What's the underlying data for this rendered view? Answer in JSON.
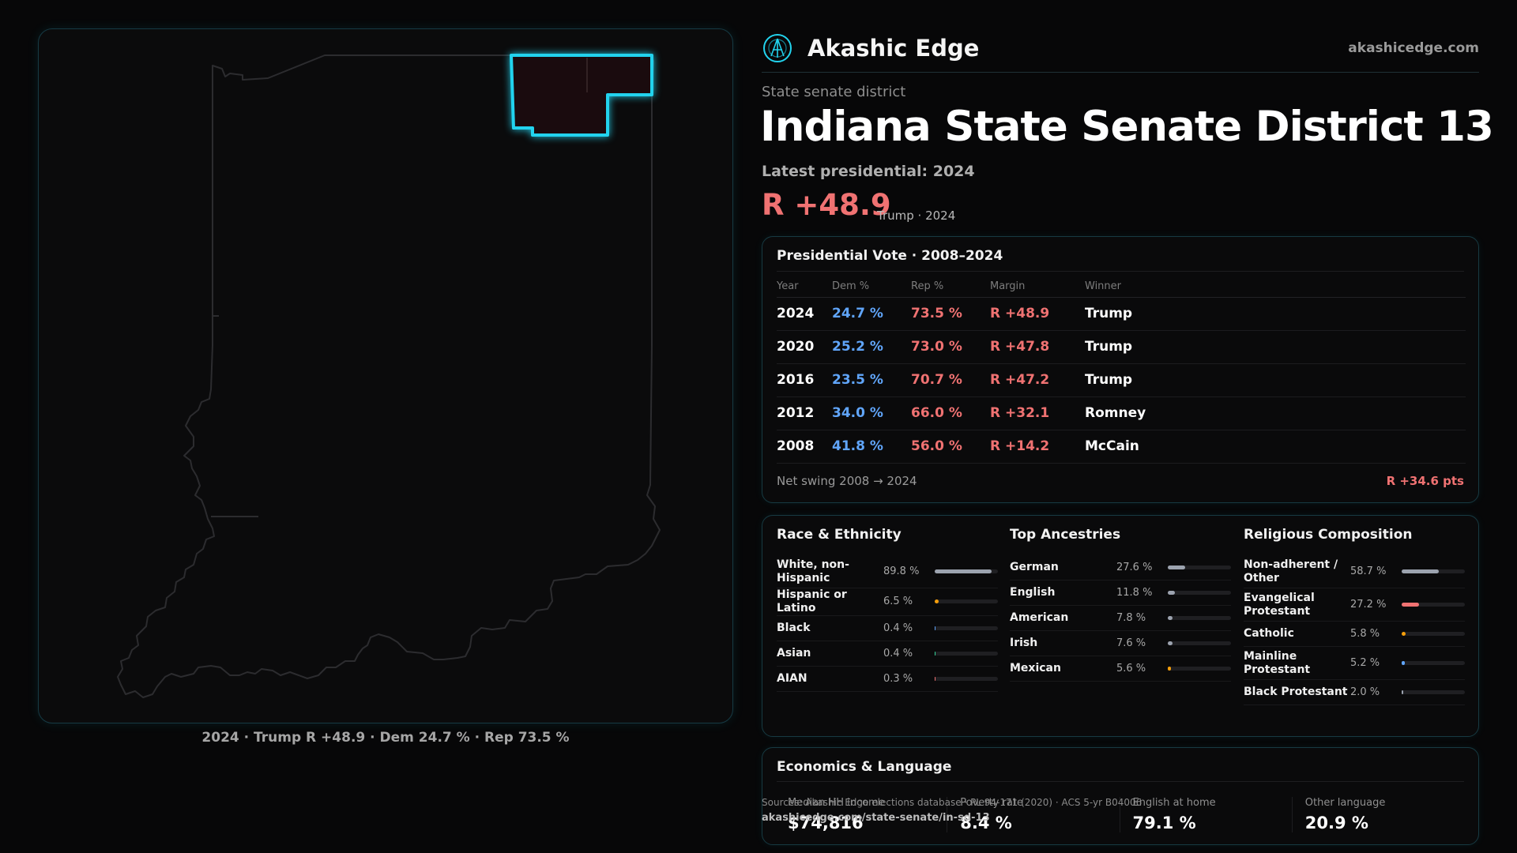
{
  "brand": {
    "name": "Akashic Edge",
    "url": "akashicedge.com",
    "accent": "#22d3ee"
  },
  "colors": {
    "dem": "#60a5fa",
    "rep": "#f07272",
    "background": "#070708"
  },
  "district": {
    "kicker": "State senate district",
    "title": "Indiana State Senate District 13",
    "latest_label": "Latest presidential: 2024",
    "headline_margin": "R +48.9",
    "headline_sub": "Trump · 2024"
  },
  "map": {
    "caption": "2024 · Trump R +48.9 · Dem 24.7 % · Rep 73.5 %"
  },
  "presidential": {
    "title": "Presidential Vote · 2008–2024",
    "columns": [
      "Year",
      "Dem %",
      "Rep %",
      "Margin",
      "Winner"
    ],
    "rows": [
      {
        "year": "2024",
        "dem": "24.7 %",
        "rep": "73.5 %",
        "margin": "R +48.9",
        "winner": "Trump"
      },
      {
        "year": "2020",
        "dem": "25.2 %",
        "rep": "73.0 %",
        "margin": "R +47.8",
        "winner": "Trump"
      },
      {
        "year": "2016",
        "dem": "23.5 %",
        "rep": "70.7 %",
        "margin": "R +47.2",
        "winner": "Trump"
      },
      {
        "year": "2012",
        "dem": "34.0 %",
        "rep": "66.0 %",
        "margin": "R +32.1",
        "winner": "Romney"
      },
      {
        "year": "2008",
        "dem": "41.8 %",
        "rep": "56.0 %",
        "margin": "R +14.2",
        "winner": "McCain"
      }
    ],
    "net_swing_label": "Net swing 2008 → 2024",
    "net_swing_value": "R +34.6 pts"
  },
  "race": {
    "title": "Race & Ethnicity",
    "items": [
      {
        "label": "White, non-Hispanic",
        "value": "89.8 %",
        "share": 0.898,
        "color": "#9ca3af"
      },
      {
        "label": "Hispanic or Latino",
        "value": "6.5 %",
        "share": 0.065,
        "color": "#f59e0b"
      },
      {
        "label": "Black",
        "value": "0.4 %",
        "share": 0.004,
        "color": "#60a5fa"
      },
      {
        "label": "Asian",
        "value": "0.4 %",
        "share": 0.004,
        "color": "#34d399"
      },
      {
        "label": "AIAN",
        "value": "0.3 %",
        "share": 0.003,
        "color": "#f07272"
      }
    ]
  },
  "ancestry": {
    "title": "Top Ancestries",
    "items": [
      {
        "label": "German",
        "value": "27.6 %",
        "share": 0.276,
        "color": "#9ca3af"
      },
      {
        "label": "English",
        "value": "11.8 %",
        "share": 0.118,
        "color": "#9ca3af"
      },
      {
        "label": "American",
        "value": "7.8 %",
        "share": 0.078,
        "color": "#9ca3af"
      },
      {
        "label": "Irish",
        "value": "7.6 %",
        "share": 0.076,
        "color": "#9ca3af"
      },
      {
        "label": "Mexican",
        "value": "5.6 %",
        "share": 0.056,
        "color": "#f59e0b"
      }
    ]
  },
  "religion": {
    "title": "Religious Composition",
    "items": [
      {
        "label": "Non-adherent / Other",
        "value": "58.7 %",
        "share": 0.587,
        "color": "#9ca3af"
      },
      {
        "label": "Evangelical Protestant",
        "value": "27.2 %",
        "share": 0.272,
        "color": "#f07272"
      },
      {
        "label": "Catholic",
        "value": "5.8 %",
        "share": 0.058,
        "color": "#f59e0b"
      },
      {
        "label": "Mainline Protestant",
        "value": "5.2 %",
        "share": 0.052,
        "color": "#60a5fa"
      },
      {
        "label": "Black Protestant",
        "value": "2.0 %",
        "share": 0.02,
        "color": "#9ca3af"
      }
    ]
  },
  "economics": {
    "title": "Economics & Language",
    "cells": [
      {
        "label": "Median HH income",
        "value": "$74,816"
      },
      {
        "label": "Poverty rate",
        "value": "8.4 %"
      },
      {
        "label": "English at home",
        "value": "79.1 %"
      },
      {
        "label": "Other language",
        "value": "20.9 %"
      }
    ]
  },
  "sources": {
    "text": "Sources: Akashic Edge elections database · PL 94-171 (2020) · ACS 5-yr B04006",
    "url": "akashicedge.com/state-senate/in-sd-13"
  }
}
